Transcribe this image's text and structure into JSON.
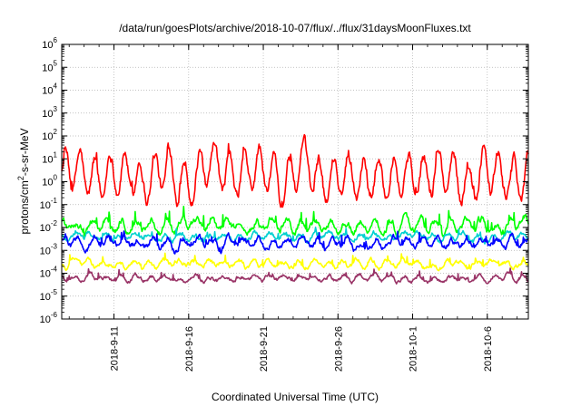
{
  "chart_data": {
    "type": "line",
    "title": "/data/run/goesPlots/archive/2018-10-07/flux/../flux/31daysMoonFluxes.txt",
    "xlabel": "Coordinated Universal Time (UTC)",
    "ylabel_main": "protons/cm",
    "ylabel_sup": "2",
    "ylabel_rest": "-s-sr-MeV",
    "yscale": "log",
    "ylim_exp": [
      -6,
      6
    ],
    "y_tick_base": "10",
    "y_tick_exponents": [
      "-6",
      "-5",
      "-4",
      "-3",
      "-2",
      "-1",
      "0",
      "1",
      "2",
      "3",
      "4",
      "5",
      "6"
    ],
    "xlim": [
      "2018-09-07T12:00",
      "2018-10-08T18:00"
    ],
    "x_ticks": [
      {
        "date": "2018-09-11",
        "label": "2018-9-11"
      },
      {
        "date": "2018-09-16",
        "label": "2018-9-16"
      },
      {
        "date": "2018-09-21",
        "label": "2018-9-21"
      },
      {
        "date": "2018-09-26",
        "label": "2018-9-26"
      },
      {
        "date": "2018-10-01",
        "label": "2018-10-1"
      },
      {
        "date": "2018-10-06",
        "label": "2018-10-6"
      }
    ],
    "grid": true,
    "series": [
      {
        "color": "#ff0000",
        "center": 2.0,
        "dailyAmp": 0.9,
        "noise": 0.35,
        "spike": 0.35,
        "phase": 0.1
      },
      {
        "color": "#00ff00",
        "center": 0.012,
        "dailyAmp": 0.25,
        "noise": 0.22,
        "spike": 0.55,
        "phase": 1.3
      },
      {
        "color": "#00d0d0",
        "center": 0.004,
        "dailyAmp": 0.12,
        "noise": 0.15,
        "spike": 0.25,
        "phase": 2.1
      },
      {
        "color": "#0000ff",
        "center": 0.0022,
        "dailyAmp": 0.18,
        "noise": 0.2,
        "spike": 0.4,
        "phase": 0.7
      },
      {
        "color": "#ffff00",
        "center": 0.00025,
        "dailyAmp": 0.12,
        "noise": 0.15,
        "spike": 0.3,
        "phase": 2.7
      },
      {
        "color": "#993366",
        "center": 6e-05,
        "dailyAmp": 0.12,
        "noise": 0.13,
        "spike": 0.25,
        "phase": 1.9
      }
    ]
  }
}
